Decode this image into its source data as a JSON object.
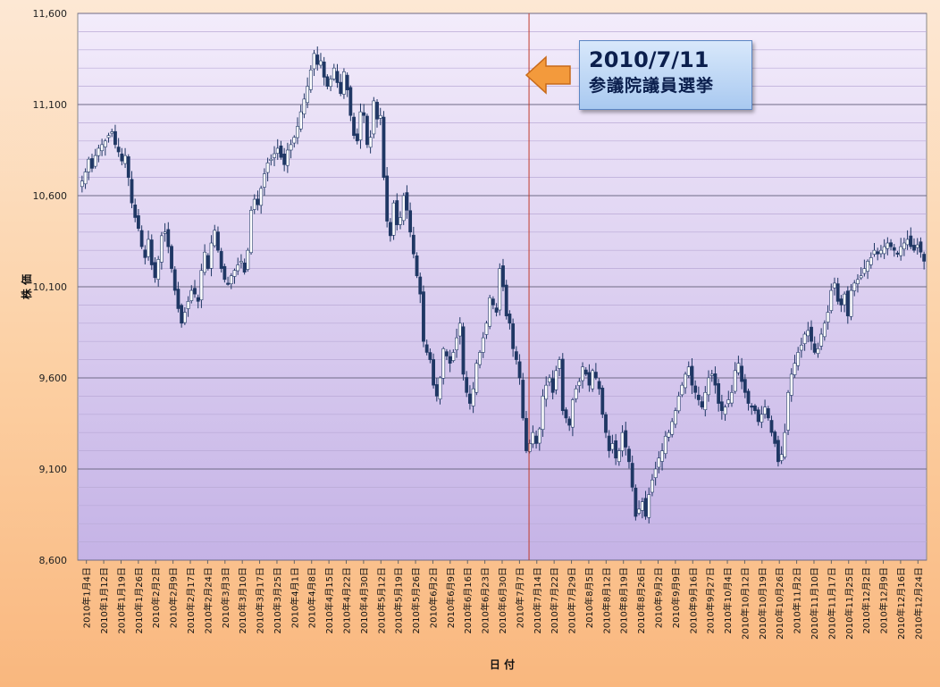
{
  "chart_data": {
    "type": "candlestick",
    "ylabel": "株 価",
    "xlabel": "日 付",
    "ylim": [
      8600,
      11600
    ],
    "yticks": [
      "11,600",
      "11,100",
      "10,600",
      "10,100",
      "9,600",
      "9,100",
      "8,600"
    ],
    "ytick_values": [
      11600,
      11100,
      10600,
      10100,
      9600,
      9100,
      8600
    ],
    "xticks": [
      "2010年1月4日",
      "2010年1月12日",
      "2010年1月19日",
      "2010年1月26日",
      "2010年2月2日",
      "2010年2月9日",
      "2010年2月17日",
      "2010年2月24日",
      "2010年3月3日",
      "2010年3月10日",
      "2010年3月17日",
      "2010年3月25日",
      "2010年4月1日",
      "2010年4月8日",
      "2010年4月15日",
      "2010年4月22日",
      "2010年4月30日",
      "2010年5月12日",
      "2010年5月19日",
      "2010年5月26日",
      "2010年6月2日",
      "2010年6月9日",
      "2010年6月16日",
      "2010年6月23日",
      "2010年6月30日",
      "2010年7月7日",
      "2010年7月14日",
      "2010年7月22日",
      "2010年7月29日",
      "2010年8月5日",
      "2010年8月12日",
      "2010年8月19日",
      "2010年8月26日",
      "2010年9月2日",
      "2010年9月9日",
      "2010年9月16日",
      "2010年9月27日",
      "2010年10月4日",
      "2010年10月12日",
      "2010年10月19日",
      "2010年10月26日",
      "2010年11月2日",
      "2010年11月10日",
      "2010年11月17日",
      "2010年11月25日",
      "2010年12月2日",
      "2010年12月9日",
      "2010年12月16日",
      "2010年12月24日"
    ],
    "event_marker": {
      "date": "2010年7月11日",
      "label_line1": "2010/7/11",
      "label_line2": "参議院議員選挙"
    },
    "candle_colors": {
      "up": "#ffffff",
      "down": "#1f3764",
      "outline": "#1f3764"
    },
    "marker_color": "#c0392b",
    "close_series": [
      10680,
      10730,
      10800,
      10750,
      10820,
      10860,
      10880,
      10900,
      10930,
      10950,
      10880,
      10840,
      10790,
      10820,
      10700,
      10560,
      10480,
      10420,
      10320,
      10260,
      10360,
      10220,
      10150,
      10250,
      10380,
      10400,
      10320,
      10200,
      10080,
      9980,
      9900,
      9960,
      10020,
      10080,
      10060,
      10020,
      10190,
      10290,
      10200,
      10340,
      10410,
      10300,
      10200,
      10140,
      10120,
      10160,
      10190,
      10220,
      10240,
      10180,
      10300,
      10520,
      10580,
      10550,
      10640,
      10720,
      10780,
      10800,
      10830,
      10860,
      10810,
      10770,
      10850,
      10880,
      10920,
      10980,
      11060,
      11130,
      11200,
      11290,
      11380,
      11320,
      11340,
      11250,
      11200,
      11240,
      11300,
      11220,
      11160,
      11280,
      11180,
      11040,
      10930,
      10900,
      11060,
      11040,
      10880,
      10920,
      11120,
      11020,
      11040,
      10700,
      10460,
      10380,
      10560,
      10440,
      10480,
      10600,
      10520,
      10400,
      10280,
      10160,
      10060,
      9800,
      9740,
      9700,
      9560,
      9500,
      9600,
      9760,
      9720,
      9680,
      9740,
      9820,
      9900,
      9620,
      9520,
      9460,
      9540,
      9680,
      9740,
      9820,
      9900,
      10040,
      10000,
      9960,
      10200,
      10100,
      9940,
      9900,
      9760,
      9700,
      9600,
      9380,
      9200,
      9240,
      9300,
      9240,
      9320,
      9500,
      9560,
      9600,
      9520,
      9640,
      9700,
      9420,
      9380,
      9340,
      9480,
      9540,
      9580,
      9660,
      9620,
      9560,
      9640,
      9600,
      9540,
      9400,
      9300,
      9200,
      9240,
      9160,
      9200,
      9300,
      9220,
      9140,
      9000,
      8840,
      8880,
      8920,
      8840,
      8960,
      9040,
      9100,
      9160,
      9200,
      9280,
      9300,
      9360,
      9420,
      9500,
      9560,
      9620,
      9660,
      9560,
      9520,
      9480,
      9440,
      9520,
      9600,
      9620,
      9560,
      9460,
      9420,
      9440,
      9480,
      9520,
      9640,
      9680,
      9580,
      9520,
      9460,
      9440,
      9420,
      9360,
      9400,
      9440,
      9380,
      9300,
      9240,
      9140,
      9180,
      9300,
      9520,
      9620,
      9680,
      9740,
      9780,
      9840,
      9860,
      9800,
      9740,
      9760,
      9840,
      9900,
      9960,
      10080,
      10120,
      10020,
      10000,
      10060,
      9940,
      10080,
      10120,
      10140,
      10160,
      10200,
      10240,
      10260,
      10300,
      10280,
      10300,
      10320,
      10340,
      10320,
      10300,
      10280,
      10320,
      10340,
      10360,
      10320,
      10300,
      10330,
      10290,
      10240
    ],
    "annotations": [
      "2010/7/11",
      "参議院議員選挙"
    ]
  }
}
